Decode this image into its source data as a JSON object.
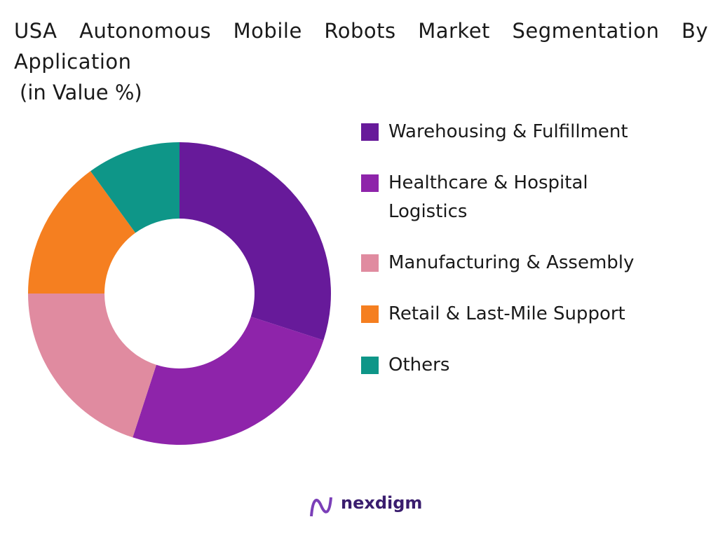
{
  "chart_data": {
    "type": "donut",
    "title": "USA Autonomous Mobile Robots Market Segmentation By Application",
    "subtitle": "(in Value %)",
    "categories": [
      "Warehousing & Fulfillment",
      "Healthcare & Hospital Logistics",
      "Manufacturing & Assembly",
      "Retail & Last-Mile Support",
      "Others"
    ],
    "values": [
      30,
      25,
      20,
      15,
      10
    ],
    "colors": [
      "#671a9a",
      "#8e24aa",
      "#e08ba0",
      "#f57f20",
      "#0e9688"
    ],
    "legend": "right"
  },
  "brand": "nexdigm"
}
